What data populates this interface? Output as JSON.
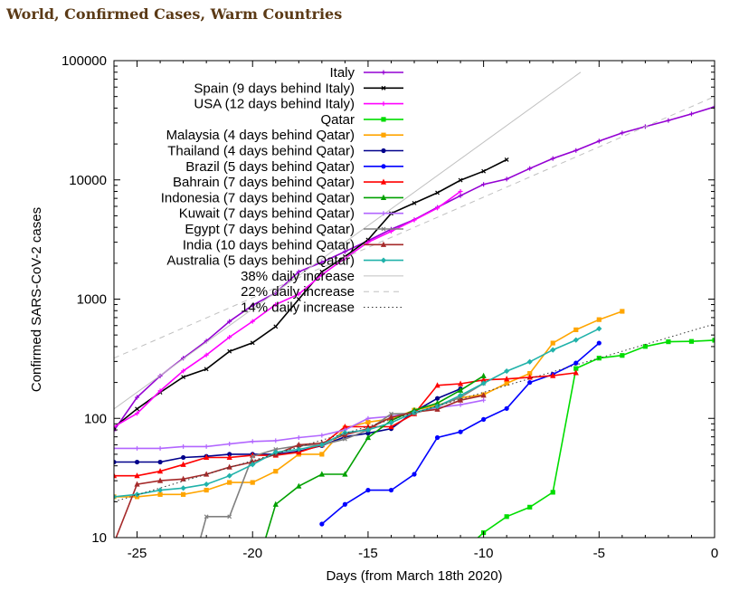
{
  "page": {
    "title": "World, Confirmed Cases, Warm Countries"
  },
  "chart_data": {
    "type": "line",
    "title": "World, Confirmed Cases, Warm Countries",
    "xlabel": "Days (from March 18th 2020)",
    "ylabel": "Confirmed SARS-CoV-2 cases",
    "xlim": [
      -26,
      0
    ],
    "ylim": [
      10,
      100000
    ],
    "yscale": "log",
    "x_ticks": [
      -25,
      -20,
      -15,
      -10,
      -5,
      0
    ],
    "y_ticks": [
      10,
      100,
      1000,
      10000,
      100000
    ],
    "legend_position": "top-left",
    "series": [
      {
        "name": "Italy",
        "color": "#9400d3",
        "marker": "plus",
        "x": [
          -26,
          -25,
          -24,
          -23,
          -22,
          -21,
          -20,
          -19,
          -18,
          -17,
          -16,
          -15,
          -14,
          -13,
          -12,
          -11,
          -10,
          -9,
          -8,
          -7,
          -6,
          -5,
          -4,
          -3,
          -2,
          -1,
          0
        ],
        "y": [
          79,
          150,
          227,
          320,
          445,
          650,
          888,
          1128,
          1694,
          2036,
          2502,
          3089,
          3858,
          4636,
          5883,
          7375,
          9172,
          10149,
          12462,
          15113,
          17660,
          21157,
          24747,
          27980,
          31506,
          35713,
          41035
        ]
      },
      {
        "name": "Spain (9 days behind Italy)",
        "color": "#000000",
        "marker": "x",
        "x": [
          -26,
          -25,
          -24,
          -23,
          -22,
          -21,
          -20,
          -19,
          -18,
          -17,
          -16,
          -15,
          -14,
          -13,
          -12,
          -11,
          -10,
          -9
        ],
        "y": [
          84,
          120,
          165,
          222,
          259,
          365,
          430,
          589,
          999,
          1695,
          2277,
          3146,
          5232,
          6391,
          7798,
          9942,
          11826,
          14769
        ]
      },
      {
        "name": "USA (12 days behind Italy)",
        "color": "#ff00ff",
        "marker": "plus",
        "x": [
          -26,
          -25,
          -24,
          -23,
          -22,
          -21,
          -20,
          -19,
          -18,
          -17,
          -16,
          -15,
          -14,
          -13,
          -12,
          -11
        ],
        "y": [
          85,
          110,
          170,
          250,
          340,
          480,
          650,
          900,
          1100,
          1600,
          2200,
          3000,
          3700,
          4600,
          5800,
          8000
        ]
      },
      {
        "name": "Qatar",
        "color": "#00dd00",
        "marker": "square",
        "x": [
          -10.5,
          -10,
          -9,
          -8,
          -7,
          -6,
          -5,
          -4,
          -3,
          -2,
          -1,
          0
        ],
        "y": [
          9,
          11,
          15,
          18,
          24,
          262,
          320,
          337,
          401,
          439,
          442,
          452
        ]
      },
      {
        "name": "Malaysia  (4 days behind Qatar)",
        "color": "#ffa500",
        "marker": "square",
        "x": [
          -26,
          -25,
          -24,
          -23,
          -22,
          -21,
          -20,
          -19,
          -18,
          -17,
          -16,
          -15,
          -14,
          -13,
          -12,
          -11,
          -10,
          -9,
          -8,
          -7,
          -6,
          -5,
          -4
        ],
        "y": [
          22,
          22,
          23,
          23,
          25,
          29,
          29,
          36,
          50,
          50,
          83,
          93,
          99,
          117,
          129,
          149,
          158,
          197,
          238,
          428,
          553,
          673,
          790
        ]
      },
      {
        "name": "Thailand  (4 days behind Qatar)",
        "color": "#00008b",
        "marker": "circle",
        "x": [
          -26,
          -25,
          -24,
          -23,
          -22,
          -21,
          -20,
          -19,
          -18,
          -17,
          -16,
          -15,
          -14,
          -13,
          -12,
          -11
        ],
        "y": [
          43,
          43,
          43,
          47,
          48,
          50,
          50,
          50,
          53,
          59,
          70,
          75,
          82,
          114,
          147,
          177
        ]
      },
      {
        "name": "Brazil (5 days behind Qatar)",
        "color": "#0000ff",
        "marker": "circle",
        "x": [
          -17,
          -16,
          -15,
          -14,
          -13,
          -12,
          -11,
          -10,
          -9,
          -8,
          -7,
          -6,
          -5
        ],
        "y": [
          13,
          19,
          25,
          25,
          34,
          69,
          77,
          98,
          121,
          200,
          234,
          291,
          428
        ]
      },
      {
        "name": "Bahrain (7 days behind Qatar)",
        "color": "#ff0000",
        "marker": "triangle",
        "x": [
          -26,
          -25,
          -24,
          -23,
          -22,
          -21,
          -20,
          -19,
          -18,
          -17,
          -16,
          -15,
          -14,
          -13,
          -12,
          -11,
          -10,
          -9,
          -8,
          -7,
          -6
        ],
        "y": [
          33,
          33,
          36,
          41,
          47,
          47,
          49,
          49,
          52,
          60,
          85,
          85,
          85,
          109,
          189,
          195,
          210,
          214,
          221,
          228,
          241
        ]
      },
      {
        "name": "Indonesia (7 days behind Qatar)",
        "color": "#00a000",
        "marker": "triangle",
        "x": [
          -19.5,
          -19,
          -18,
          -17,
          -16,
          -15,
          -14,
          -13,
          -12,
          -11,
          -10
        ],
        "y": [
          9,
          19,
          27,
          34,
          34,
          69,
          96,
          117,
          134,
          172,
          227
        ]
      },
      {
        "name": "Kuwait (7 days behind Qatar)",
        "color": "#b266ff",
        "marker": "plus",
        "x": [
          -26,
          -25,
          -24,
          -23,
          -22,
          -21,
          -20,
          -19,
          -18,
          -17,
          -16,
          -15,
          -14,
          -13,
          -12,
          -11,
          -10
        ],
        "y": [
          56,
          56,
          56,
          58,
          58,
          61,
          64,
          65,
          69,
          72,
          80,
          100,
          104,
          112,
          123,
          130,
          142
        ]
      },
      {
        "name": "Egypt (7 days behind Qatar)",
        "color": "#808080",
        "marker": "x",
        "x": [
          -23,
          -22,
          -21,
          -20,
          -19,
          -18,
          -17,
          -16,
          -15,
          -14,
          -13,
          -12,
          -11,
          -10
        ],
        "y": [
          3,
          15,
          15,
          48,
          55,
          59,
          60,
          67,
          80,
          109,
          110,
          126,
          150,
          196
        ]
      },
      {
        "name": "India (10 days behind Qatar)",
        "color": "#a52a2a",
        "marker": "triangle",
        "x": [
          -26,
          -25,
          -24,
          -23,
          -22,
          -21,
          -20,
          -19,
          -18,
          -17,
          -16,
          -15,
          -14,
          -13,
          -12,
          -11,
          -10
        ],
        "y": [
          9,
          28,
          30,
          31,
          34,
          39,
          43,
          50,
          60,
          62,
          73,
          82,
          102,
          113,
          119,
          142,
          156
        ]
      },
      {
        "name": "Australia (5 days behind Qatar)",
        "color": "#20b2aa",
        "marker": "diamond",
        "x": [
          -26,
          -25,
          -24,
          -23,
          -22,
          -21,
          -20,
          -19,
          -18,
          -17,
          -16,
          -15,
          -14,
          -13,
          -12,
          -11,
          -10,
          -9,
          -8,
          -7,
          -6,
          -5
        ],
        "y": [
          22,
          23,
          25,
          26,
          28,
          33,
          41,
          52,
          55,
          60,
          76,
          80,
          92,
          112,
          126,
          156,
          197,
          249,
          298,
          375,
          454,
          565
        ]
      },
      {
        "name": "38% daily increase",
        "color": "#c0c0c0",
        "style": "solid",
        "x": [
          -26,
          -5.8
        ],
        "y": [
          120,
          80000
        ]
      },
      {
        "name": "22% daily increase",
        "color": "#c0c0c0",
        "style": "dashed",
        "x": [
          -26,
          0
        ],
        "y": [
          320,
          50000
        ]
      },
      {
        "name": "14% daily increase",
        "color": "#000000",
        "style": "dotted",
        "x": [
          -26,
          0
        ],
        "y": [
          20,
          620
        ]
      }
    ]
  }
}
